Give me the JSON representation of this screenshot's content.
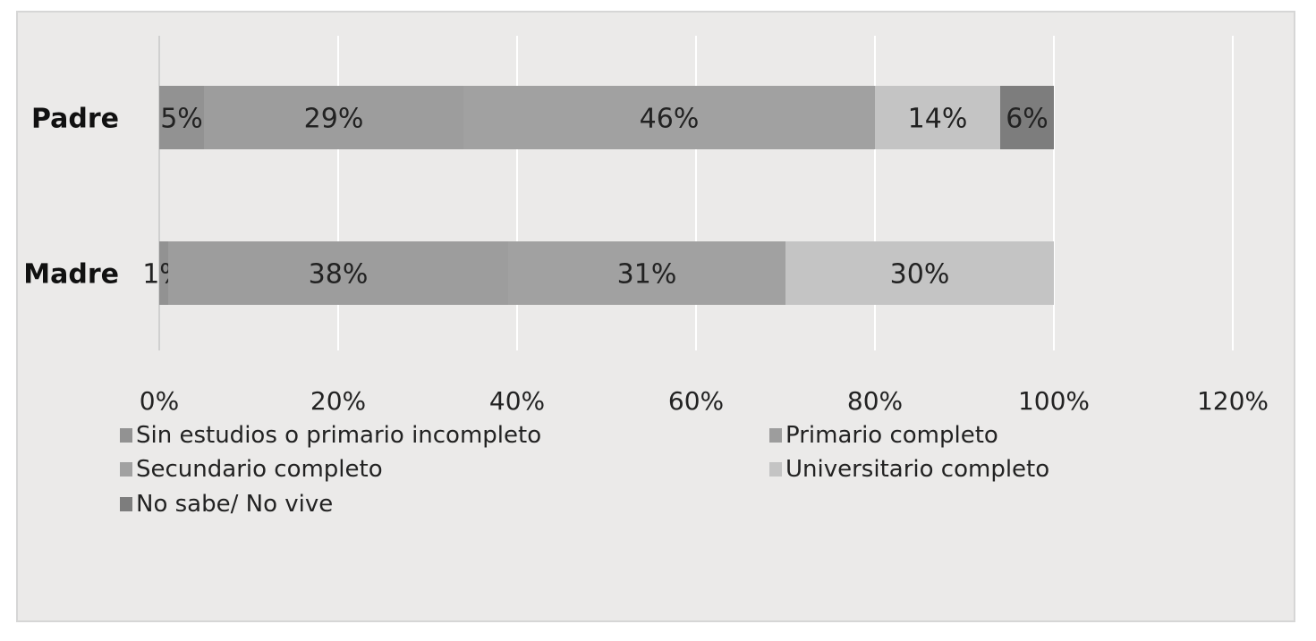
{
  "chart_data": {
    "type": "bar",
    "orientation": "horizontal",
    "stacked": true,
    "title": "",
    "xlabel": "",
    "ylabel": "",
    "categories": [
      "Padre",
      "Madre"
    ],
    "series": [
      {
        "name": "Sin estudios o primario incompleto",
        "values": [
          5,
          1
        ],
        "labels": [
          "5%",
          "1%"
        ],
        "color": "#929292"
      },
      {
        "name": "Primario completo",
        "values": [
          29,
          38
        ],
        "labels": [
          "29%",
          "38%"
        ],
        "color": "#9d9d9d"
      },
      {
        "name": "Secundario completo",
        "values": [
          46,
          31
        ],
        "labels": [
          "46%",
          "31%"
        ],
        "color": "#a1a1a1"
      },
      {
        "name": "Universitario completo",
        "values": [
          14,
          30
        ],
        "labels": [
          "14%",
          "30%"
        ],
        "color": "#c4c4c4"
      },
      {
        "name": "No sabe/ No vive",
        "values": [
          6,
          0
        ],
        "labels": [
          "6%",
          ""
        ],
        "color": "#7d7d7d"
      }
    ],
    "xlim": [
      0,
      120
    ],
    "xticks": [
      0,
      20,
      40,
      60,
      80,
      100,
      120
    ],
    "xtick_labels": [
      "0%",
      "20%",
      "40%",
      "60%",
      "80%",
      "100%",
      "120%"
    ],
    "grid": true,
    "legend_position": "bottom"
  }
}
